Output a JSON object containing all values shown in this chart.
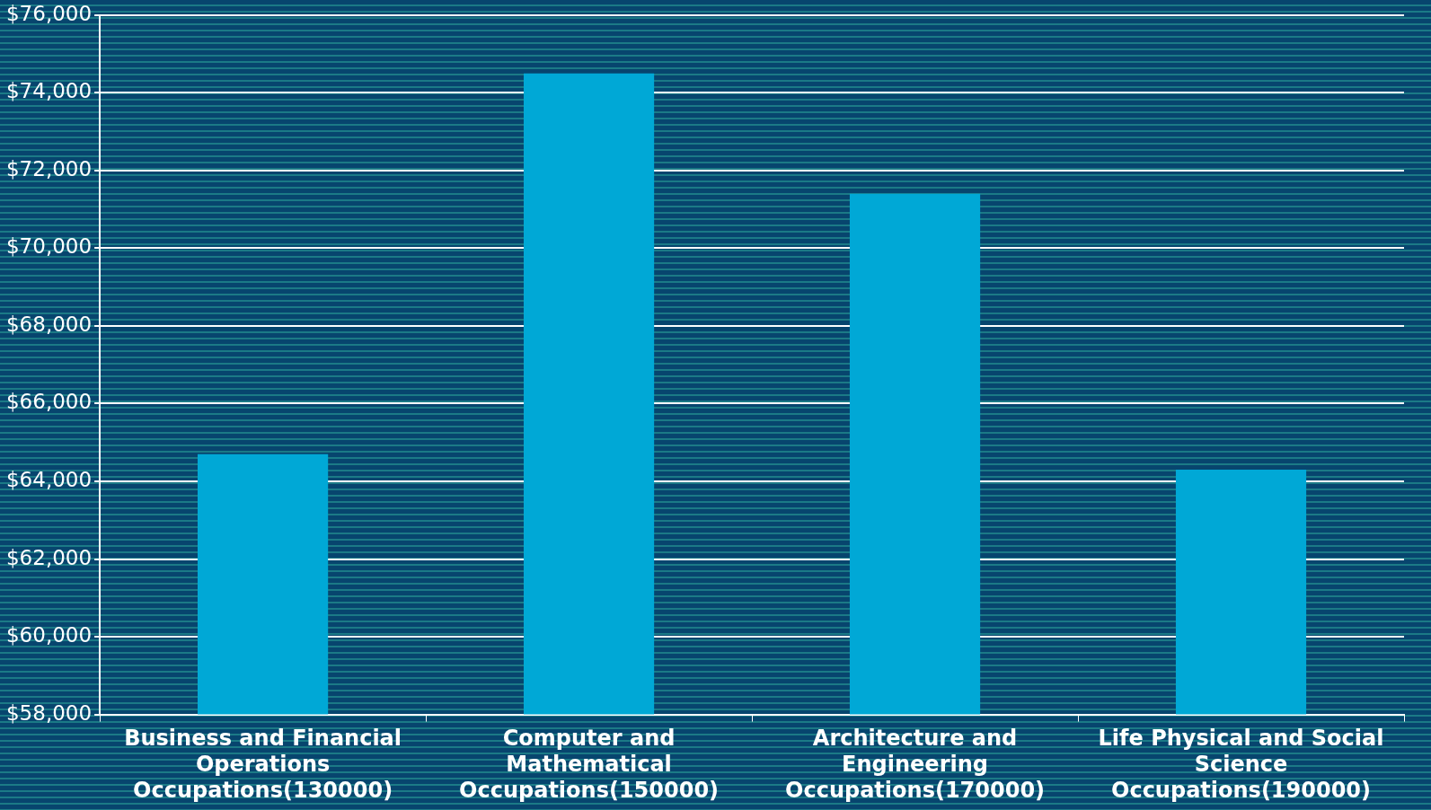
{
  "chart_data": {
    "type": "bar",
    "categories": [
      "Business and Financial Operations Occupations(130000)",
      "Computer and Mathematical Occupations(150000)",
      "Architecture and Engineering Occupations(170000)",
      "Life Physical and Social Science Occupations(190000)"
    ],
    "values": [
      64700,
      74500,
      71400,
      64300
    ],
    "color": "#00a8d6",
    "ylim": [
      58000,
      76000
    ],
    "yticks": [
      {
        "value": 58000,
        "label": "$58,000"
      },
      {
        "value": 60000,
        "label": "$60,000"
      },
      {
        "value": 62000,
        "label": "$62,000"
      },
      {
        "value": 64000,
        "label": "$64,000"
      },
      {
        "value": 66000,
        "label": "$66,000"
      },
      {
        "value": 68000,
        "label": "$68,000"
      },
      {
        "value": 70000,
        "label": "$70,000"
      },
      {
        "value": 72000,
        "label": "$72,000"
      },
      {
        "value": 74000,
        "label": "$74,000"
      },
      {
        "value": 76000,
        "label": "$76,000"
      }
    ],
    "grid": "y"
  }
}
